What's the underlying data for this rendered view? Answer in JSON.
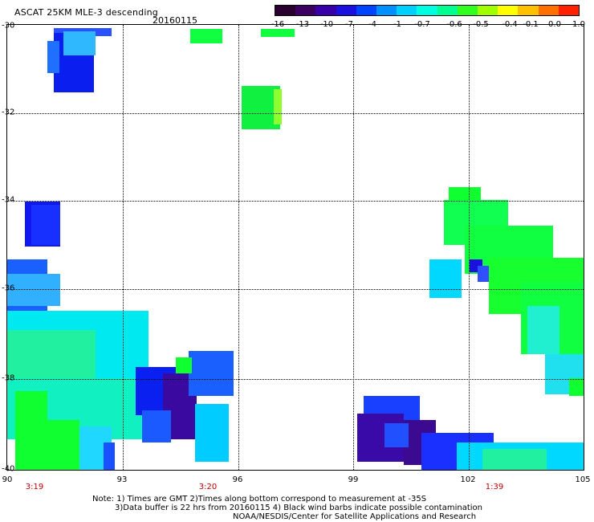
{
  "header": {
    "title": "ASCAT 25KM MLE-3 descending",
    "date": "20160115"
  },
  "legend": {
    "labels": [
      "-16",
      "-13",
      "-10",
      "-7",
      "-4",
      "-1",
      "-0.7",
      "-0.6",
      "-0.5",
      "-0.4",
      "-0.1",
      "0.0",
      "1.0"
    ],
    "colors": [
      "#2a0030",
      "#3c0060",
      "#3800a8",
      "#1a10e0",
      "#0044ff",
      "#0090ff",
      "#00d0ff",
      "#00ffe0",
      "#00ff90",
      "#30ff20",
      "#a0ff00",
      "#ffff00",
      "#ffc000",
      "#ff7000",
      "#ff2000"
    ]
  },
  "map": {
    "lat_labels": [
      "-30",
      "-32",
      "-34",
      "-36",
      "-38",
      "-40"
    ],
    "lon_labels": [
      "90",
      "93",
      "96",
      "99",
      "102",
      "105"
    ],
    "pass_times": [
      "3:19",
      "3:20",
      "1:39"
    ]
  },
  "notes": {
    "line1": "Note: 1) Times are GMT 2)Times along bottom correspond to measurement at -35S",
    "line2": "3)Data buffer is 22 hrs from 20160115 4) Black wind barbs indicate possible contamination",
    "line3": "NOAA/NESDIS/Center for Satellite Applications and Research"
  }
}
